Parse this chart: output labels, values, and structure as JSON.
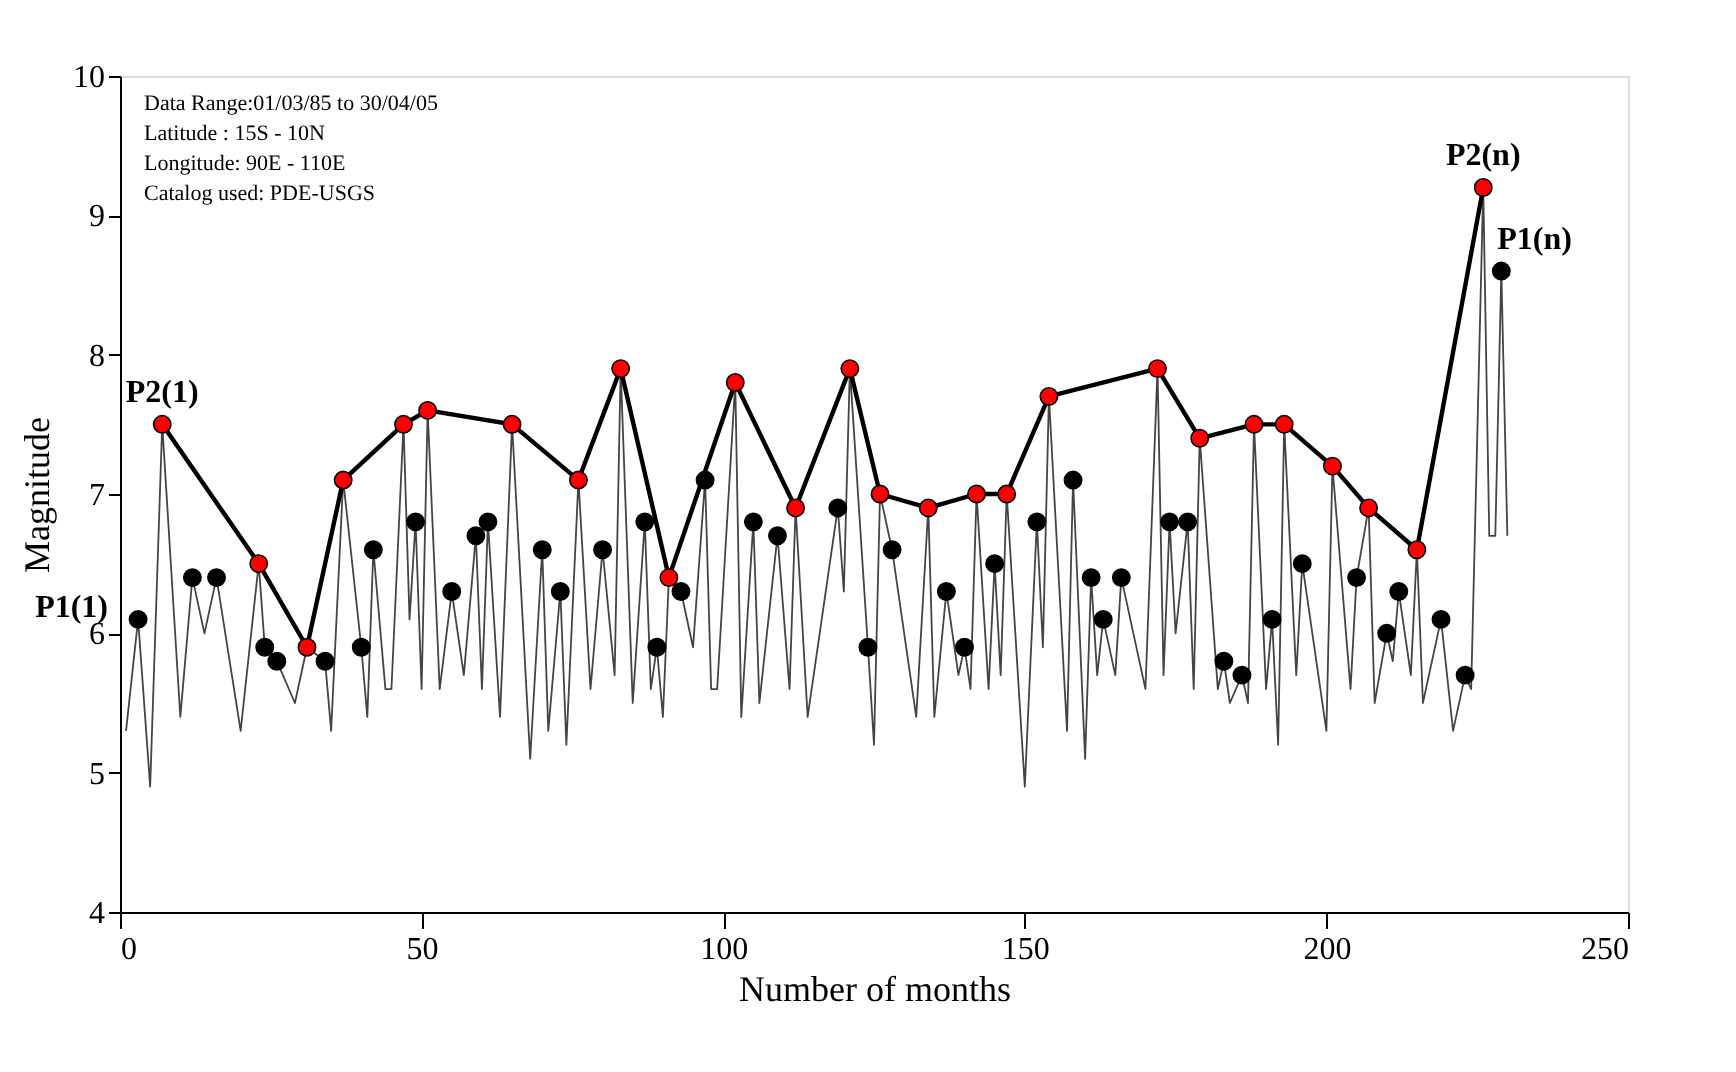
{
  "chart_data": {
    "type": "line",
    "xlabel": "Number of months",
    "ylabel": "Magnitude",
    "xlim": [
      0,
      250
    ],
    "ylim": [
      4,
      10
    ],
    "xticks": [
      0,
      50,
      100,
      150,
      200,
      250
    ],
    "yticks": [
      4,
      5,
      6,
      7,
      8,
      9,
      10
    ],
    "grid": false,
    "annotations": [
      "Data Range:01/03/85 to 30/04/05",
      "Latitude : 15S - 10N",
      "Longitude: 90E - 110E",
      "Catalog used: PDE-USGS",
      {
        "text": "P2(1)",
        "x": 7,
        "y": 7.5
      },
      {
        "text": "P1(1)",
        "x": 3,
        "y": 6.1
      },
      {
        "text": "P2(n)",
        "x": 226,
        "y": 9.2
      },
      {
        "text": "P1(n)",
        "x": 229,
        "y": 8.6
      }
    ],
    "series": [
      {
        "color": "#444444",
        "marker": "none",
        "x": [
          1,
          3,
          5,
          7,
          10,
          12,
          14,
          16,
          20,
          23,
          24,
          26,
          29,
          31,
          34,
          35,
          37,
          40,
          41,
          42,
          44,
          45,
          47,
          48,
          49,
          50,
          51,
          53,
          55,
          57,
          59,
          60,
          61,
          63,
          65,
          68,
          70,
          71,
          73,
          74,
          76,
          78,
          80,
          82,
          83,
          85,
          87,
          88,
          89,
          90,
          91,
          93,
          95,
          97,
          98,
          99,
          102,
          103,
          105,
          106,
          109,
          111,
          112,
          114,
          119,
          120,
          121,
          124,
          125,
          126,
          128,
          132,
          134,
          135,
          137,
          139,
          140,
          141,
          142,
          144,
          145,
          146,
          147,
          150,
          152,
          153,
          154,
          157,
          158,
          160,
          161,
          162,
          163,
          165,
          166,
          170,
          172,
          173,
          174,
          175,
          177,
          178,
          179,
          182,
          183,
          184,
          186,
          187,
          188,
          190,
          191,
          192,
          193,
          195,
          196,
          200,
          201,
          204,
          205,
          207,
          208,
          210,
          211,
          212,
          214,
          215,
          216,
          219,
          221,
          223,
          224,
          226,
          227,
          228,
          229,
          230
        ],
        "values": [
          5.3,
          6.1,
          4.9,
          7.5,
          5.4,
          6.4,
          6.0,
          6.4,
          5.3,
          6.5,
          5.9,
          5.8,
          5.5,
          5.9,
          5.8,
          5.3,
          7.1,
          5.9,
          5.4,
          6.6,
          5.6,
          5.6,
          7.5,
          6.1,
          6.8,
          5.6,
          7.6,
          5.6,
          6.3,
          5.7,
          6.7,
          5.6,
          6.8,
          5.4,
          7.5,
          5.1,
          6.6,
          5.3,
          6.3,
          5.2,
          7.1,
          5.6,
          6.6,
          5.7,
          7.9,
          5.5,
          6.8,
          5.6,
          5.9,
          5.4,
          6.4,
          6.3,
          5.9,
          7.1,
          5.6,
          5.6,
          7.8,
          5.4,
          6.8,
          5.5,
          6.7,
          5.6,
          6.9,
          5.4,
          6.9,
          6.3,
          7.9,
          5.9,
          5.2,
          7.0,
          6.6,
          5.4,
          6.9,
          5.4,
          6.3,
          5.7,
          5.9,
          5.6,
          7.0,
          5.6,
          6.5,
          5.7,
          7.0,
          4.9,
          6.8,
          5.9,
          7.7,
          5.3,
          7.1,
          5.1,
          6.4,
          5.7,
          6.1,
          5.7,
          6.4,
          5.6,
          7.9,
          5.7,
          6.8,
          6.0,
          6.8,
          5.6,
          7.4,
          5.6,
          5.8,
          5.5,
          5.7,
          5.5,
          7.5,
          5.6,
          6.1,
          5.2,
          7.5,
          5.7,
          6.5,
          5.3,
          7.2,
          5.6,
          6.4,
          6.9,
          5.5,
          6.0,
          5.8,
          6.3,
          5.7,
          6.6,
          5.5,
          6.1,
          5.3,
          5.7,
          5.6,
          9.2,
          6.7,
          6.7,
          8.6,
          6.7
        ]
      },
      {
        "color": "#000000",
        "marker": "none",
        "x": [
          7,
          23,
          31,
          37,
          47,
          51,
          65,
          76,
          83,
          91,
          102,
          112,
          121,
          126,
          134,
          142,
          147,
          154,
          172,
          179,
          188,
          193,
          201,
          207,
          215,
          226
        ],
        "values": [
          7.5,
          6.5,
          5.9,
          7.1,
          7.5,
          7.6,
          7.5,
          7.1,
          7.9,
          6.4,
          7.8,
          6.9,
          7.9,
          7.0,
          6.9,
          7.0,
          7.0,
          7.7,
          7.9,
          7.4,
          7.5,
          7.5,
          7.2,
          6.9,
          6.6,
          9.2
        ]
      },
      {
        "type": "scatter",
        "color": "#ff0000",
        "marker": "circle",
        "x": [
          7,
          23,
          31,
          37,
          47,
          51,
          65,
          76,
          83,
          91,
          102,
          112,
          121,
          126,
          134,
          142,
          147,
          154,
          172,
          179,
          188,
          193,
          201,
          207,
          215,
          226
        ],
        "values": [
          7.5,
          6.5,
          5.9,
          7.1,
          7.5,
          7.6,
          7.5,
          7.1,
          7.9,
          6.4,
          7.8,
          6.9,
          7.9,
          7.0,
          6.9,
          7.0,
          7.0,
          7.7,
          7.9,
          7.4,
          7.5,
          7.5,
          7.2,
          6.9,
          6.6,
          9.2
        ]
      },
      {
        "type": "scatter",
        "color": "#000000",
        "marker": "circle",
        "x": [
          3,
          12,
          16,
          24,
          26,
          34,
          40,
          42,
          49,
          55,
          59,
          61,
          70,
          73,
          80,
          87,
          89,
          93,
          97,
          105,
          109,
          119,
          124,
          128,
          137,
          140,
          145,
          152,
          158,
          161,
          163,
          166,
          174,
          177,
          183,
          186,
          191,
          196,
          205,
          210,
          212,
          219,
          223,
          229
        ],
        "values": [
          6.1,
          6.4,
          6.4,
          5.9,
          5.8,
          5.8,
          5.9,
          6.6,
          6.8,
          6.3,
          6.7,
          6.8,
          6.6,
          6.3,
          6.6,
          6.8,
          5.9,
          6.3,
          7.1,
          6.8,
          6.7,
          6.9,
          5.9,
          6.6,
          6.3,
          5.9,
          6.5,
          6.8,
          7.1,
          6.4,
          6.1,
          6.4,
          6.8,
          6.8,
          5.8,
          5.7,
          6.1,
          6.5,
          6.4,
          6.0,
          6.3,
          6.1,
          5.7,
          8.6
        ]
      }
    ]
  }
}
